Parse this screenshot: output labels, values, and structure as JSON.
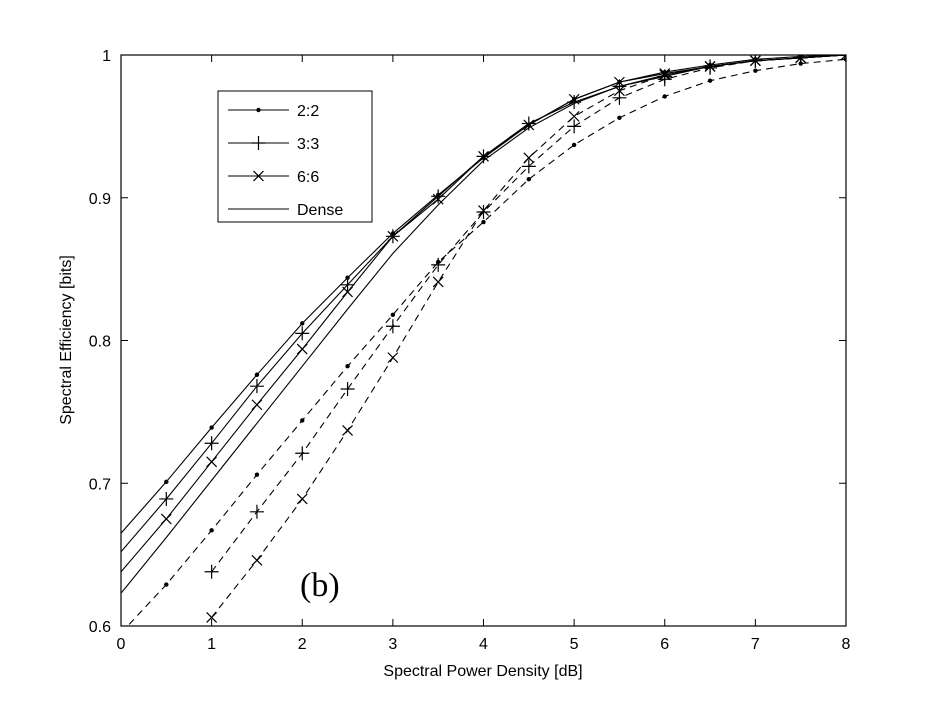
{
  "chart_data": {
    "type": "line",
    "panel_label": "(b)",
    "xlabel": "Spectral Power Density [dB]",
    "ylabel": "Spectral Efficiency [bits]",
    "xlim": [
      0,
      8
    ],
    "ylim": [
      0.6,
      1
    ],
    "xticks": [
      "0",
      "1",
      "2",
      "3",
      "4",
      "5",
      "6",
      "7",
      "8"
    ],
    "yticks": [
      "0.6",
      "0.7",
      "0.8",
      "0.9",
      "1"
    ],
    "grid": false,
    "legend": {
      "position": "top-left",
      "entries": [
        {
          "label": "2:2",
          "marker": "dot"
        },
        {
          "label": "3:3",
          "marker": "plus"
        },
        {
          "label": "6:6",
          "marker": "x"
        },
        {
          "label": "Dense",
          "marker": "none"
        }
      ]
    },
    "series": [
      {
        "style": "solid",
        "marker": "dot",
        "x": [
          0,
          0.5,
          1,
          1.5,
          2,
          2.5,
          3,
          3.5,
          4,
          4.5,
          5,
          5.5,
          6,
          6.5,
          7,
          7.5,
          8
        ],
        "y": [
          0.665,
          0.701,
          0.739,
          0.776,
          0.812,
          0.844,
          0.875,
          0.902,
          0.928,
          0.951,
          0.969,
          0.981,
          0.988,
          0.993,
          0.997,
          0.999,
          1.0
        ]
      },
      {
        "style": "solid",
        "marker": "plus",
        "x": [
          0,
          0.5,
          1,
          1.5,
          2,
          2.5,
          3,
          3.5,
          4,
          4.5,
          5,
          5.5,
          6,
          6.5,
          7,
          7.5,
          8
        ],
        "y": [
          0.652,
          0.689,
          0.728,
          0.768,
          0.805,
          0.839,
          0.873,
          0.901,
          0.929,
          0.952,
          0.967,
          0.978,
          0.985,
          0.992,
          0.996,
          0.998,
          1.0
        ]
      },
      {
        "style": "solid",
        "marker": "x",
        "x": [
          0,
          0.5,
          1,
          1.5,
          2,
          2.5,
          3,
          3.5,
          4,
          4.5,
          5,
          5.5,
          6,
          6.5,
          7,
          7.5,
          8
        ],
        "y": [
          0.638,
          0.675,
          0.715,
          0.755,
          0.794,
          0.834,
          0.873,
          0.899,
          0.929,
          0.951,
          0.969,
          0.981,
          0.987,
          0.992,
          0.996,
          0.998,
          1.0
        ]
      },
      {
        "style": "solid",
        "marker": "none",
        "x": [
          0,
          0.5,
          1,
          1.5,
          2,
          2.5,
          3,
          3.5,
          4,
          4.5,
          5,
          5.5,
          6,
          6.5,
          7,
          7.5,
          8
        ],
        "y": [
          0.623,
          0.662,
          0.702,
          0.742,
          0.782,
          0.822,
          0.861,
          0.895,
          0.926,
          0.949,
          0.966,
          0.978,
          0.986,
          0.992,
          0.996,
          0.998,
          1.0
        ]
      },
      {
        "style": "dashed",
        "marker": "dot",
        "x": [
          0,
          0.5,
          1,
          1.5,
          2,
          2.5,
          3,
          3.5,
          4,
          4.5,
          5,
          5.5,
          6,
          6.5,
          7,
          7.5,
          8
        ],
        "y": [
          0.595,
          0.629,
          0.667,
          0.706,
          0.744,
          0.782,
          0.818,
          0.855,
          0.883,
          0.913,
          0.937,
          0.956,
          0.971,
          0.982,
          0.989,
          0.994,
          0.997
        ]
      },
      {
        "style": "dashed",
        "marker": "plus",
        "x": [
          1,
          1.5,
          2,
          2.5,
          3,
          3.5,
          4,
          4.5,
          5,
          5.5,
          6,
          6.5,
          7,
          7.5,
          8
        ],
        "y": [
          0.638,
          0.68,
          0.721,
          0.766,
          0.81,
          0.853,
          0.89,
          0.922,
          0.95,
          0.97,
          0.983,
          0.991,
          0.996,
          0.998,
          1.0
        ]
      },
      {
        "style": "dashed",
        "marker": "x",
        "x": [
          1,
          1.5,
          2,
          2.5,
          3,
          3.5,
          4,
          4.5,
          5,
          5.5,
          6,
          6.5,
          7,
          7.5,
          8
        ],
        "y": [
          0.606,
          0.646,
          0.689,
          0.737,
          0.788,
          0.841,
          0.891,
          0.928,
          0.957,
          0.975,
          0.986,
          0.992,
          0.996,
          0.998,
          1.0
        ]
      }
    ]
  }
}
